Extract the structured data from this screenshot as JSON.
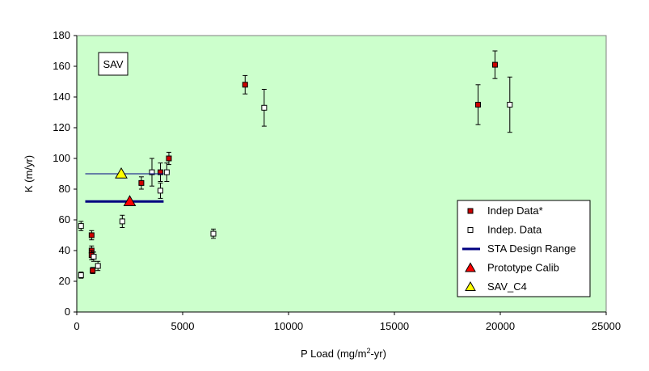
{
  "chart_data": {
    "type": "scatter",
    "annotation": "SAV",
    "xlabel_main": "P Load (mg/m",
    "xlabel_sup": "2",
    "xlabel_tail": "-yr)",
    "ylabel": "K (m/yr)",
    "xlim": [
      0,
      25000
    ],
    "ylim": [
      0,
      180
    ],
    "x_ticks": [
      "0",
      "5000",
      "10000",
      "15000",
      "20000",
      "25000"
    ],
    "y_ticks": [
      "0",
      "20",
      "40",
      "60",
      "80",
      "100",
      "120",
      "140",
      "160",
      "180"
    ],
    "plot_background": "#ccffcc",
    "legend_position": "bottom-right",
    "series": [
      {
        "name": "Indep Data*",
        "marker": "square-filled",
        "color": "#cc0000",
        "points": [
          {
            "x": 700,
            "y": 50,
            "err": 3
          },
          {
            "x": 700,
            "y": 40,
            "err": 3
          },
          {
            "x": 700,
            "y": 37,
            "err": 3
          },
          {
            "x": 750,
            "y": 27,
            "err": 2
          },
          {
            "x": 3050,
            "y": 84,
            "err": 4
          },
          {
            "x": 3950,
            "y": 91,
            "err": 6
          },
          {
            "x": 4350,
            "y": 100,
            "err": 4
          },
          {
            "x": 7950,
            "y": 148,
            "err": 6
          },
          {
            "x": 18950,
            "y": 135,
            "err": 13
          },
          {
            "x": 19750,
            "y": 161,
            "err": 9
          }
        ]
      },
      {
        "name": "Indep. Data",
        "marker": "square-open",
        "color": "#000000",
        "points": [
          {
            "x": 200,
            "y": 56,
            "err": 3
          },
          {
            "x": 200,
            "y": 24,
            "err": 2
          },
          {
            "x": 800,
            "y": 36,
            "err": 3
          },
          {
            "x": 1000,
            "y": 30,
            "err": 3
          },
          {
            "x": 2150,
            "y": 59,
            "err": 4
          },
          {
            "x": 3550,
            "y": 91,
            "err": 9
          },
          {
            "x": 3950,
            "y": 79,
            "err": 5
          },
          {
            "x": 4250,
            "y": 91,
            "err": 6
          },
          {
            "x": 6450,
            "y": 51,
            "err": 3
          },
          {
            "x": 8850,
            "y": 133,
            "err": 12
          },
          {
            "x": 20450,
            "y": 135,
            "err": 18
          }
        ]
      },
      {
        "name": "STA Design Range",
        "marker": "line",
        "color": "#000080",
        "x": [
          400,
          4100
        ],
        "y": [
          72,
          72
        ]
      },
      {
        "name": "Prototype Calib",
        "marker": "triangle",
        "color": "#ff0000",
        "points": [
          {
            "x": 2500,
            "y": 72
          }
        ]
      },
      {
        "name": "SAV_C4",
        "marker": "triangle",
        "color": "#ffff00",
        "points": [
          {
            "x": 2100,
            "y": 90
          }
        ],
        "hline": {
          "x": [
            400,
            4100
          ],
          "y": 90,
          "color": "#000080"
        }
      }
    ]
  }
}
